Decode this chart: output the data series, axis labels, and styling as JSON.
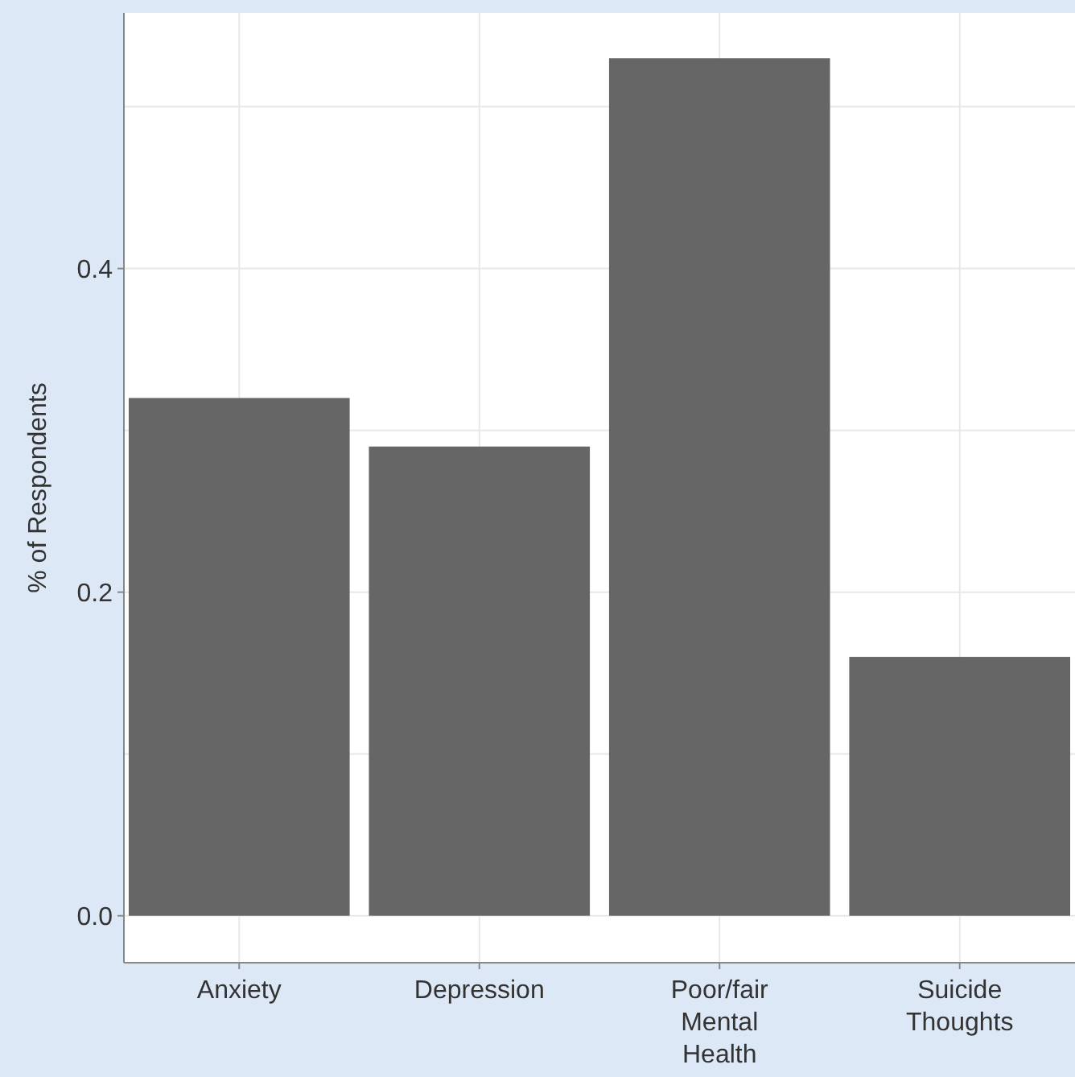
{
  "chart_data": {
    "type": "bar",
    "ylabel": "% of Respondents",
    "categories": [
      "Anxiety",
      "Depression",
      "Poor/fair Mental Health",
      "Suicide Thoughts"
    ],
    "values": [
      0.32,
      0.29,
      0.53,
      0.16
    ],
    "color": "#666666",
    "ylim": [
      -0.029,
      0.558
    ],
    "yticks": [
      {
        "value": 0.0,
        "label": "0.0"
      },
      {
        "value": 0.1,
        "label": null
      },
      {
        "value": 0.2,
        "label": "0.2"
      },
      {
        "value": 0.3,
        "label": null
      },
      {
        "value": 0.4,
        "label": "0.4"
      },
      {
        "value": 0.5,
        "label": null
      }
    ],
    "grid": true
  }
}
